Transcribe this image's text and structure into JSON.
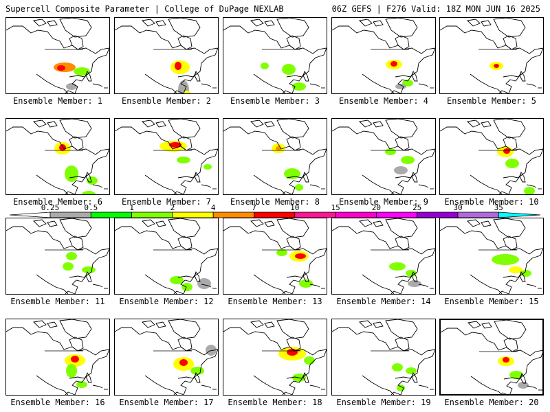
{
  "header": {
    "title_left": "Supercell Composite Parameter | College of DuPage NEXLAB",
    "title_right": "06Z GEFS | F276 Valid: 18Z MON JUN 16 2025"
  },
  "member_prefix": "Ensemble Member: ",
  "selected_member": 20,
  "members": [
    {
      "id": 1,
      "label": "Ensemble Member: 1",
      "blobs": [
        [
          85,
          72,
          16,
          7,
          "#ff8c00"
        ],
        [
          80,
          73,
          6,
          4,
          "#ff0000"
        ],
        [
          110,
          78,
          12,
          6,
          "#80ff00"
        ],
        [
          40,
          120,
          10,
          5,
          "#80ff00"
        ],
        [
          95,
          100,
          8,
          5,
          "#aaaaaa"
        ]
      ]
    },
    {
      "id": 2,
      "label": "Ensemble Member: 2",
      "blobs": [
        [
          95,
          72,
          14,
          10,
          "#ffff00"
        ],
        [
          92,
          70,
          5,
          6,
          "#ff0000"
        ],
        [
          100,
          105,
          8,
          14,
          "#aaaaaa"
        ],
        [
          105,
          112,
          6,
          6,
          "#ffff00"
        ],
        [
          120,
          118,
          8,
          5,
          "#80ff00"
        ]
      ]
    },
    {
      "id": 3,
      "label": "Ensemble Member: 3",
      "blobs": [
        [
          60,
          70,
          6,
          5,
          "#80ff00"
        ],
        [
          95,
          75,
          10,
          8,
          "#80ff00"
        ],
        [
          110,
          100,
          10,
          6,
          "#80ff00"
        ],
        [
          140,
          120,
          6,
          5,
          "#80ff00"
        ]
      ]
    },
    {
      "id": 4,
      "label": "Ensemble Member: 4",
      "blobs": [
        [
          90,
          68,
          12,
          7,
          "#ffff00"
        ],
        [
          90,
          67,
          5,
          4,
          "#ff0000"
        ],
        [
          110,
          95,
          8,
          5,
          "#80ff00"
        ],
        [
          100,
          100,
          8,
          4,
          "#aaaaaa"
        ]
      ]
    },
    {
      "id": 5,
      "label": "Ensemble Member: 5",
      "blobs": [
        [
          82,
          70,
          10,
          6,
          "#ffff00"
        ],
        [
          82,
          70,
          4,
          3,
          "#ff0000"
        ],
        [
          125,
          120,
          8,
          6,
          "#80ff00"
        ]
      ]
    },
    {
      "id": 6,
      "label": "Ensemble Member: 6",
      "blobs": [
        [
          82,
          43,
          12,
          9,
          "#ffff00"
        ],
        [
          82,
          42,
          5,
          5,
          "#ff0000"
        ],
        [
          95,
          80,
          10,
          12,
          "#80ff00"
        ],
        [
          125,
          90,
          8,
          6,
          "#80ff00"
        ],
        [
          120,
          110,
          10,
          5,
          "#80ff00"
        ]
      ]
    },
    {
      "id": 7,
      "label": "Ensemble Member: 7",
      "blobs": [
        [
          85,
          40,
          20,
          8,
          "#ffff00"
        ],
        [
          88,
          38,
          9,
          4,
          "#ff0000"
        ],
        [
          100,
          60,
          10,
          5,
          "#80ff00"
        ],
        [
          135,
          70,
          6,
          4,
          "#80ff00"
        ]
      ]
    },
    {
      "id": 8,
      "label": "Ensemble Member: 8",
      "blobs": [
        [
          80,
          43,
          10,
          7,
          "#ffff00"
        ],
        [
          80,
          43,
          4,
          3,
          "#ff8c00"
        ],
        [
          100,
          80,
          12,
          8,
          "#80ff00"
        ],
        [
          110,
          100,
          6,
          5,
          "#80ff00"
        ]
      ]
    },
    {
      "id": 9,
      "label": "Ensemble Member: 9",
      "blobs": [
        [
          85,
          48,
          8,
          5,
          "#80ff00"
        ],
        [
          110,
          60,
          10,
          6,
          "#80ff00"
        ],
        [
          100,
          75,
          10,
          6,
          "#aaaaaa"
        ]
      ]
    },
    {
      "id": 10,
      "label": "Ensemble Member: 10",
      "blobs": [
        [
          95,
          48,
          12,
          8,
          "#ffff00"
        ],
        [
          97,
          47,
          5,
          4,
          "#ff0000"
        ],
        [
          105,
          65,
          10,
          7,
          "#80ff00"
        ],
        [
          130,
          105,
          8,
          6,
          "#80ff00"
        ]
      ]
    },
    {
      "id": 11,
      "label": "Ensemble Member: 11",
      "blobs": [
        [
          95,
          55,
          8,
          6,
          "#80ff00"
        ],
        [
          90,
          70,
          8,
          6,
          "#80ff00"
        ],
        [
          120,
          75,
          10,
          5,
          "#80ff00"
        ]
      ]
    },
    {
      "id": 12,
      "label": "Ensemble Member: 12",
      "blobs": [
        [
          90,
          90,
          10,
          6,
          "#80ff00"
        ],
        [
          105,
          100,
          8,
          6,
          "#80ff00"
        ],
        [
          130,
          95,
          10,
          8,
          "#aaaaaa"
        ]
      ]
    },
    {
      "id": 13,
      "label": "Ensemble Member: 13",
      "blobs": [
        [
          110,
          55,
          14,
          8,
          "#ffff00"
        ],
        [
          112,
          55,
          8,
          4,
          "#ff0000"
        ],
        [
          85,
          50,
          8,
          5,
          "#80ff00"
        ],
        [
          120,
          95,
          10,
          6,
          "#80ff00"
        ]
      ]
    },
    {
      "id": 14,
      "label": "Ensemble Member: 14",
      "blobs": [
        [
          95,
          70,
          12,
          6,
          "#80ff00"
        ],
        [
          115,
          80,
          8,
          5,
          "#80ff00"
        ],
        [
          120,
          95,
          10,
          5,
          "#aaaaaa"
        ]
      ]
    },
    {
      "id": 15,
      "label": "Ensemble Member: 15",
      "blobs": [
        [
          95,
          60,
          20,
          8,
          "#80ff00"
        ],
        [
          110,
          75,
          10,
          5,
          "#ffff00"
        ],
        [
          125,
          80,
          8,
          5,
          "#80ff00"
        ]
      ]
    },
    {
      "id": 16,
      "label": "Ensemble Member: 16",
      "blobs": [
        [
          100,
          60,
          15,
          9,
          "#ffff00"
        ],
        [
          100,
          58,
          6,
          5,
          "#ff0000"
        ],
        [
          95,
          75,
          8,
          10,
          "#80ff00"
        ],
        [
          110,
          95,
          8,
          5,
          "#80ff00"
        ]
      ]
    },
    {
      "id": 17,
      "label": "Ensemble Member: 17",
      "blobs": [
        [
          100,
          65,
          15,
          10,
          "#ffff00"
        ],
        [
          100,
          63,
          6,
          5,
          "#ff0000"
        ],
        [
          120,
          75,
          10,
          6,
          "#80ff00"
        ],
        [
          140,
          45,
          8,
          8,
          "#aaaaaa"
        ]
      ]
    },
    {
      "id": 18,
      "label": "Ensemble Member: 18",
      "blobs": [
        [
          100,
          50,
          20,
          10,
          "#ffff00"
        ],
        [
          100,
          48,
          8,
          5,
          "#ff0000"
        ],
        [
          125,
          60,
          8,
          6,
          "#80ff00"
        ],
        [
          110,
          85,
          10,
          6,
          "#80ff00"
        ]
      ]
    },
    {
      "id": 19,
      "label": "Ensemble Member: 19",
      "blobs": [
        [
          95,
          70,
          8,
          6,
          "#80ff00"
        ],
        [
          115,
          75,
          8,
          5,
          "#80ff00"
        ],
        [
          100,
          100,
          6,
          5,
          "#80ff00"
        ]
      ]
    },
    {
      "id": 20,
      "label": "Ensemble Member: 20",
      "blobs": [
        [
          95,
          60,
          12,
          7,
          "#ffff00"
        ],
        [
          95,
          58,
          5,
          4,
          "#ff0000"
        ],
        [
          110,
          80,
          10,
          6,
          "#80ff00"
        ],
        [
          120,
          95,
          8,
          5,
          "#aaaaaa"
        ]
      ]
    }
  ],
  "colorbar": {
    "ticks": [
      "0.25",
      "0.5",
      "1",
      "2",
      "4",
      "7",
      "10",
      "15",
      "20",
      "25",
      "30",
      "35"
    ],
    "colors": [
      "#ffffff",
      "#aaaaaa",
      "#00ff00",
      "#80ff00",
      "#ffff00",
      "#ff8c00",
      "#ff0000",
      "#ff1493",
      "#ff00cc",
      "#ff00ff",
      "#9400d3",
      "#b06ad8",
      "#00ffff"
    ]
  }
}
